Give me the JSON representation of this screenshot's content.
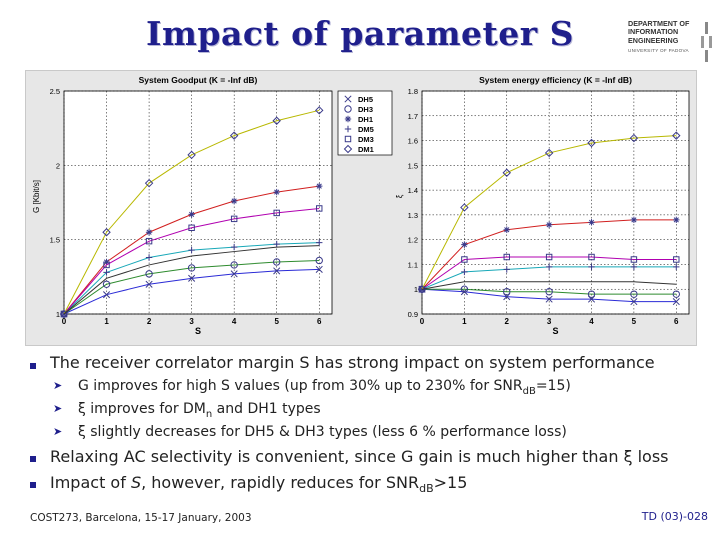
{
  "slide": {
    "title": "Impact of parameter S",
    "logo_lines": [
      "DEPARTMENT OF",
      "INFORMATION",
      "ENGINEERING"
    ],
    "logo_university": "UNIVERSITY OF PADOVA",
    "footer_left": "COST273, Barcelona, 15-17 January, 2003",
    "footer_right": "TD (03)-028"
  },
  "bullets": [
    {
      "level": 1,
      "segments": [
        {
          "t": "The receiver correlator margin S has strong impact on system performance"
        }
      ]
    },
    {
      "level": 2,
      "segments": [
        {
          "t": "G improves for high S values (up from 30% up to 230% for SNR"
        },
        {
          "t": "dB",
          "sub": true
        },
        {
          "t": "=15)"
        }
      ]
    },
    {
      "level": 2,
      "segments": [
        {
          "t": "ξ improves for DM"
        },
        {
          "t": "n",
          "sub": true
        },
        {
          "t": " and DH1 types"
        }
      ]
    },
    {
      "level": 2,
      "segments": [
        {
          "t": "ξ slightly decreases for DH5 & DH3 types (less 6 % performance loss)"
        }
      ]
    },
    {
      "level": 1,
      "segments": [
        {
          "t": "Relaxing AC selectivity is convenient, since G gain is much higher than ξ  loss"
        }
      ]
    },
    {
      "level": 1,
      "segments": [
        {
          "t": "Impact of "
        },
        {
          "t": "S",
          "italic": true
        },
        {
          "t": ", however, rapidly reduces for  SNR"
        },
        {
          "t": "dB",
          "sub": true
        },
        {
          "t": ">15"
        }
      ]
    }
  ],
  "colors": {
    "DH5": "#2b2bd6",
    "DH3": "#2e8b2e",
    "DH1": "#d11f1f",
    "DM5": "#18a8b8",
    "DM3": "#b000b0",
    "DM1": "#b8b800",
    "marker": "#3a3a8a"
  },
  "chart_data": [
    {
      "type": "line",
      "title": "System Goodput (K = -Inf dB)",
      "xlabel": "S",
      "ylabel": "G [Kbit/s]",
      "x": [
        0,
        1,
        2,
        3,
        4,
        5,
        6
      ],
      "xlim": [
        0,
        6.3
      ],
      "ylim": [
        1,
        2.5
      ],
      "yticks": [
        1,
        1.5,
        2,
        2.5
      ],
      "grid": true,
      "legend_position": "top-right",
      "series": [
        {
          "name": "DH5",
          "marker": "x",
          "values": [
            1.0,
            1.13,
            1.2,
            1.24,
            1.27,
            1.29,
            1.3
          ]
        },
        {
          "name": "DH3",
          "marker": "o",
          "values": [
            1.0,
            1.2,
            1.27,
            1.31,
            1.33,
            1.35,
            1.36
          ]
        },
        {
          "name": "DH1",
          "marker": "*",
          "values": [
            1.0,
            1.35,
            1.55,
            1.67,
            1.76,
            1.82,
            1.86
          ]
        },
        {
          "name": "DM5",
          "marker": "+",
          "values": [
            1.0,
            1.28,
            1.38,
            1.43,
            1.45,
            1.47,
            1.48
          ]
        },
        {
          "name": "DM3",
          "marker": "s",
          "values": [
            1.0,
            1.33,
            1.49,
            1.58,
            1.64,
            1.68,
            1.71
          ]
        },
        {
          "name": "DM1",
          "marker": "d",
          "values": [
            1.0,
            1.55,
            1.88,
            2.07,
            2.2,
            2.3,
            2.37
          ]
        },
        {
          "name": "",
          "marker": "none",
          "values": [
            1.0,
            1.24,
            1.33,
            1.39,
            1.42,
            1.45,
            1.46
          ]
        }
      ]
    },
    {
      "type": "line",
      "title": "System energy efficiency (K = -Inf dB)",
      "xlabel": "S",
      "ylabel": "ξ",
      "x": [
        0,
        1,
        2,
        3,
        4,
        5,
        6
      ],
      "xlim": [
        0,
        6.3
      ],
      "ylim": [
        0.9,
        1.8
      ],
      "yticks": [
        0.9,
        1,
        1.1,
        1.2,
        1.3,
        1.4,
        1.5,
        1.6,
        1.7,
        1.8
      ],
      "grid": true,
      "series": [
        {
          "name": "DH5",
          "values": [
            1.0,
            0.99,
            0.97,
            0.96,
            0.96,
            0.95,
            0.95
          ]
        },
        {
          "name": "DH3",
          "values": [
            1.0,
            1.0,
            0.99,
            0.99,
            0.98,
            0.98,
            0.98
          ]
        },
        {
          "name": "DH1",
          "values": [
            1.0,
            1.18,
            1.24,
            1.26,
            1.27,
            1.28,
            1.28
          ]
        },
        {
          "name": "DM5",
          "values": [
            1.0,
            1.07,
            1.08,
            1.09,
            1.09,
            1.09,
            1.09
          ]
        },
        {
          "name": "DM3",
          "values": [
            1.0,
            1.12,
            1.13,
            1.13,
            1.13,
            1.12,
            1.12
          ]
        },
        {
          "name": "DM1",
          "values": [
            1.0,
            1.33,
            1.47,
            1.55,
            1.59,
            1.61,
            1.62
          ]
        },
        {
          "name": "",
          "values": [
            1.0,
            1.03,
            1.03,
            1.03,
            1.03,
            1.03,
            1.02
          ]
        }
      ]
    }
  ]
}
